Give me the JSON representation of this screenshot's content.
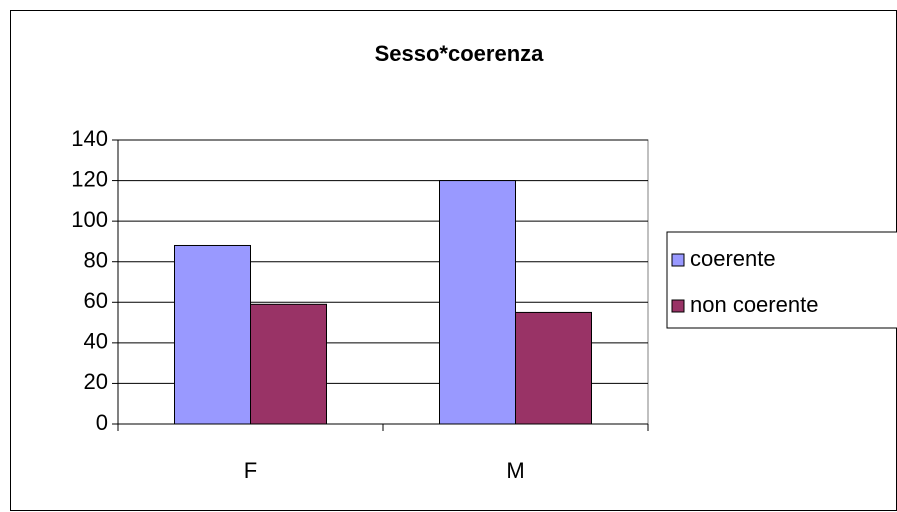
{
  "chart_data": {
    "type": "bar",
    "title": "Sesso*coerenza",
    "categories": [
      "F",
      "M"
    ],
    "series": [
      {
        "name": "coerente",
        "color": "#9999ff",
        "values": [
          88,
          120
        ]
      },
      {
        "name": "non coerente",
        "color": "#993366",
        "values": [
          59,
          55
        ]
      }
    ],
    "ylim": [
      0,
      140
    ],
    "yticks": [
      0,
      20,
      40,
      60,
      80,
      100,
      120,
      140
    ],
    "grid": true,
    "legend": "right"
  }
}
